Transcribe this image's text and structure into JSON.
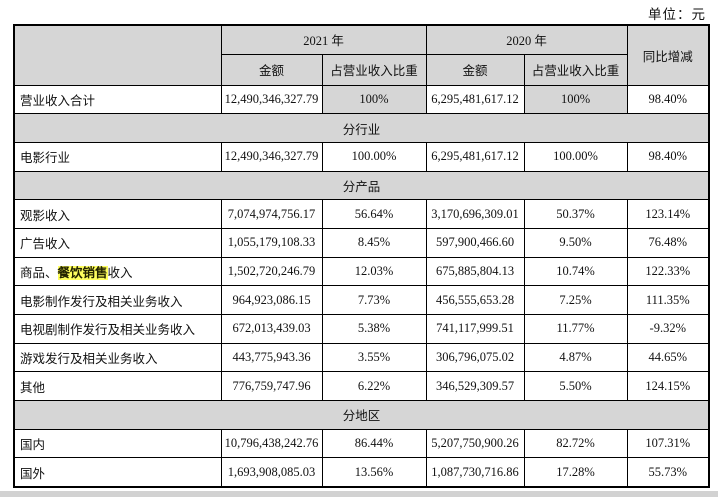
{
  "page": {
    "unit_label": "单位：元"
  },
  "colors": {
    "header_bg": "#d6d6d6",
    "section_bg": "#d6d6d6",
    "shaded_cell_bg": "#d6d6d6",
    "highlight_bg": "#ffff5e",
    "border": "#000000",
    "text": "#111111",
    "bottom_bar": "#d2d2d2"
  },
  "table": {
    "header": {
      "year_2021": "2021 年",
      "year_2020": "2020 年",
      "yoy_label": "同比增减",
      "amount_label": "金额",
      "pct_label": "占营业收入比重"
    },
    "rows": [
      {
        "type": "data",
        "label_parts": [
          {
            "text": "营业收入合计",
            "highlight": false
          }
        ],
        "values": [
          "12,490,346,327.79",
          "100%",
          "6,295,481,617.12",
          "100%",
          "98.40%"
        ],
        "shade_cols": [
          1,
          3
        ]
      },
      {
        "type": "section",
        "label": "分行业"
      },
      {
        "type": "data",
        "label_parts": [
          {
            "text": "电影行业",
            "highlight": false
          }
        ],
        "values": [
          "12,490,346,327.79",
          "100.00%",
          "6,295,481,617.12",
          "100.00%",
          "98.40%"
        ]
      },
      {
        "type": "section",
        "label": "分产品"
      },
      {
        "type": "data",
        "label_parts": [
          {
            "text": "观影收入",
            "highlight": false
          }
        ],
        "values": [
          "7,074,974,756.17",
          "56.64%",
          "3,170,696,309.01",
          "50.37%",
          "123.14%"
        ]
      },
      {
        "type": "data",
        "label_parts": [
          {
            "text": "广告收入",
            "highlight": false
          }
        ],
        "values": [
          "1,055,179,108.33",
          "8.45%",
          "597,900,466.60",
          "9.50%",
          "76.48%"
        ]
      },
      {
        "type": "data",
        "label_parts": [
          {
            "text": "商品、",
            "highlight": false
          },
          {
            "text": "餐饮销售",
            "highlight": true
          },
          {
            "text": "收入",
            "highlight": false
          }
        ],
        "values": [
          "1,502,720,246.79",
          "12.03%",
          "675,885,804.13",
          "10.74%",
          "122.33%"
        ]
      },
      {
        "type": "data",
        "label_parts": [
          {
            "text": "电影制作发行及相关业务收入",
            "highlight": false
          }
        ],
        "values": [
          "964,923,086.15",
          "7.73%",
          "456,555,653.28",
          "7.25%",
          "111.35%"
        ]
      },
      {
        "type": "data",
        "label_parts": [
          {
            "text": "电视剧制作发行及相关业务收入",
            "highlight": false
          }
        ],
        "values": [
          "672,013,439.03",
          "5.38%",
          "741,117,999.51",
          "11.77%",
          "-9.32%"
        ]
      },
      {
        "type": "data",
        "label_parts": [
          {
            "text": "游戏发行及相关业务收入",
            "highlight": false
          }
        ],
        "values": [
          "443,775,943.36",
          "3.55%",
          "306,796,075.02",
          "4.87%",
          "44.65%"
        ]
      },
      {
        "type": "data",
        "label_parts": [
          {
            "text": "其他",
            "highlight": false
          }
        ],
        "values": [
          "776,759,747.96",
          "6.22%",
          "346,529,309.57",
          "5.50%",
          "124.15%"
        ]
      },
      {
        "type": "section",
        "label": "分地区"
      },
      {
        "type": "data",
        "label_parts": [
          {
            "text": "国内",
            "highlight": false
          }
        ],
        "values": [
          "10,796,438,242.76",
          "86.44%",
          "5,207,750,900.26",
          "82.72%",
          "107.31%"
        ]
      },
      {
        "type": "data",
        "label_parts": [
          {
            "text": "国外",
            "highlight": false
          }
        ],
        "values": [
          "1,693,908,085.03",
          "13.56%",
          "1,087,730,716.86",
          "17.28%",
          "55.73%"
        ]
      }
    ]
  }
}
